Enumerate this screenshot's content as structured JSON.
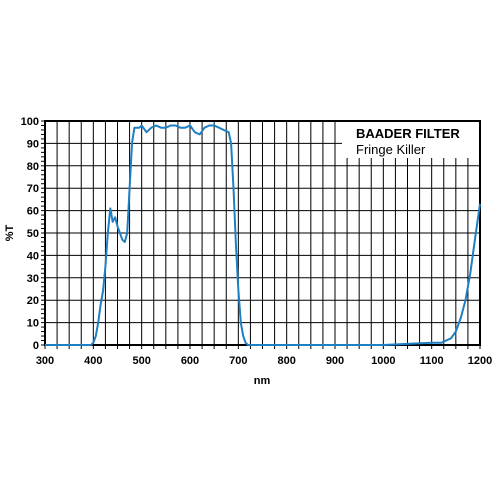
{
  "chart_data": {
    "type": "line",
    "title": "BAADER FILTER",
    "subtitle": "Fringe Killer",
    "xlabel": "nm",
    "ylabel": "%T",
    "xlim": [
      300,
      1200
    ],
    "ylim": [
      0,
      100
    ],
    "x_ticks": [
      300,
      400,
      500,
      600,
      700,
      800,
      900,
      1000,
      1100,
      1200
    ],
    "y_ticks": [
      0,
      10,
      20,
      30,
      40,
      50,
      60,
      70,
      80,
      90,
      100
    ],
    "grid": true,
    "line_color": "#1e7fc4",
    "series": [
      {
        "points": [
          [
            300,
            0
          ],
          [
            350,
            0
          ],
          [
            395,
            0
          ],
          [
            400,
            1
          ],
          [
            405,
            4
          ],
          [
            410,
            10
          ],
          [
            415,
            18
          ],
          [
            420,
            24
          ],
          [
            425,
            35
          ],
          [
            430,
            50
          ],
          [
            435,
            61
          ],
          [
            440,
            55
          ],
          [
            445,
            57
          ],
          [
            450,
            53
          ],
          [
            455,
            50
          ],
          [
            460,
            47
          ],
          [
            465,
            46
          ],
          [
            470,
            50
          ],
          [
            475,
            70
          ],
          [
            480,
            90
          ],
          [
            485,
            97
          ],
          [
            490,
            97
          ],
          [
            495,
            97
          ],
          [
            500,
            98
          ],
          [
            510,
            95
          ],
          [
            520,
            97
          ],
          [
            530,
            98
          ],
          [
            540,
            97
          ],
          [
            550,
            97
          ],
          [
            560,
            98
          ],
          [
            570,
            98
          ],
          [
            580,
            97
          ],
          [
            590,
            97
          ],
          [
            600,
            98
          ],
          [
            610,
            95
          ],
          [
            620,
            94
          ],
          [
            630,
            97
          ],
          [
            640,
            98
          ],
          [
            650,
            98
          ],
          [
            660,
            97
          ],
          [
            670,
            96
          ],
          [
            680,
            95
          ],
          [
            685,
            90
          ],
          [
            690,
            70
          ],
          [
            695,
            45
          ],
          [
            700,
            25
          ],
          [
            705,
            10
          ],
          [
            710,
            4
          ],
          [
            715,
            1
          ],
          [
            720,
            0
          ],
          [
            800,
            0
          ],
          [
            900,
            0
          ],
          [
            1000,
            0
          ],
          [
            1100,
            1
          ],
          [
            1120,
            1
          ],
          [
            1130,
            2
          ],
          [
            1140,
            3
          ],
          [
            1150,
            6
          ],
          [
            1160,
            12
          ],
          [
            1170,
            20
          ],
          [
            1180,
            32
          ],
          [
            1190,
            48
          ],
          [
            1200,
            63
          ]
        ]
      }
    ]
  }
}
